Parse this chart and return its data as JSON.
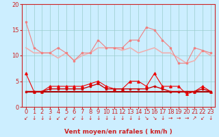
{
  "title": "",
  "xlabel": "Vent moyen/en rafales ( km/h )",
  "ylabel": "",
  "background_color": "#cceeff",
  "grid_color": "#99cccc",
  "xlim": [
    -0.5,
    23.5
  ],
  "ylim": [
    0,
    20
  ],
  "yticks": [
    0,
    5,
    10,
    15,
    20
  ],
  "xticks": [
    0,
    1,
    2,
    3,
    4,
    5,
    6,
    7,
    8,
    9,
    10,
    11,
    12,
    13,
    14,
    15,
    16,
    17,
    18,
    19,
    20,
    21,
    22,
    23
  ],
  "series": [
    {
      "name": "rafales_markers",
      "x": [
        0,
        1,
        2,
        3,
        4,
        5,
        6,
        7,
        8,
        9,
        10,
        11,
        12,
        13,
        14,
        15,
        16,
        17,
        18,
        19,
        20,
        21,
        22,
        23
      ],
      "y": [
        16.5,
        11.5,
        10.5,
        10.5,
        11.5,
        10.5,
        9.0,
        10.5,
        10.5,
        13.0,
        11.5,
        11.5,
        11.5,
        13.0,
        13.0,
        15.5,
        15.0,
        13.0,
        11.5,
        8.5,
        8.5,
        11.5,
        11.0,
        10.5
      ],
      "color": "#f08080",
      "linewidth": 0.8,
      "marker": "s",
      "markersize": 2.0,
      "zorder": 3
    },
    {
      "name": "rafales_smooth",
      "x": [
        0,
        1,
        2,
        3,
        4,
        5,
        6,
        7,
        8,
        9,
        10,
        11,
        12,
        13,
        14,
        15,
        16,
        17,
        18,
        19,
        20,
        21,
        22,
        23
      ],
      "y": [
        11.5,
        10.5,
        10.5,
        10.5,
        9.5,
        10.5,
        9.0,
        10.0,
        10.5,
        11.5,
        11.5,
        11.5,
        11.0,
        11.5,
        10.5,
        11.0,
        11.5,
        10.5,
        10.5,
        9.5,
        8.5,
        9.0,
        11.0,
        10.0
      ],
      "color": "#f0b0b0",
      "linewidth": 1.2,
      "marker": null,
      "markersize": 0,
      "zorder": 2
    },
    {
      "name": "moyen_markers",
      "x": [
        0,
        1,
        2,
        3,
        4,
        5,
        6,
        7,
        8,
        9,
        10,
        11,
        12,
        13,
        14,
        15,
        16,
        17,
        18,
        19,
        20,
        21,
        22,
        23
      ],
      "y": [
        6.5,
        3.0,
        3.0,
        4.0,
        4.0,
        4.0,
        4.0,
        4.0,
        4.5,
        5.0,
        4.0,
        3.5,
        3.5,
        5.0,
        5.0,
        4.0,
        6.5,
        4.0,
        4.0,
        4.0,
        2.5,
        3.0,
        4.0,
        3.0
      ],
      "color": "#ee0000",
      "linewidth": 0.8,
      "marker": "^",
      "markersize": 2.5,
      "zorder": 4
    },
    {
      "name": "moyen_smooth",
      "x": [
        0,
        1,
        2,
        3,
        4,
        5,
        6,
        7,
        8,
        9,
        10,
        11,
        12,
        13,
        14,
        15,
        16,
        17,
        18,
        19,
        20,
        21,
        22,
        23
      ],
      "y": [
        3.0,
        3.0,
        3.0,
        3.5,
        3.5,
        3.5,
        3.5,
        3.5,
        4.0,
        4.5,
        3.5,
        3.5,
        3.5,
        3.5,
        3.5,
        3.5,
        4.0,
        3.5,
        3.0,
        3.0,
        3.0,
        3.0,
        3.5,
        3.0
      ],
      "color": "#cc0000",
      "linewidth": 1.0,
      "marker": "s",
      "markersize": 2.0,
      "zorder": 4
    },
    {
      "name": "moyen_flat",
      "x": [
        0,
        1,
        2,
        3,
        4,
        5,
        6,
        7,
        8,
        9,
        10,
        11,
        12,
        13,
        14,
        15,
        16,
        17,
        18,
        19,
        20,
        21,
        22,
        23
      ],
      "y": [
        3.0,
        3.0,
        3.0,
        3.0,
        3.0,
        3.0,
        3.0,
        3.0,
        3.0,
        3.0,
        3.0,
        3.0,
        3.0,
        3.0,
        3.0,
        3.0,
        3.0,
        3.0,
        3.0,
        3.0,
        3.0,
        3.0,
        3.0,
        3.0
      ],
      "color": "#aa0000",
      "linewidth": 1.5,
      "marker": null,
      "markersize": 0,
      "zorder": 2
    }
  ],
  "wind_arrows": [
    {
      "x": 0,
      "symbol": "↙"
    },
    {
      "x": 1,
      "symbol": "↓"
    },
    {
      "x": 2,
      "symbol": "↓"
    },
    {
      "x": 3,
      "symbol": "↓"
    },
    {
      "x": 4,
      "symbol": "↙"
    },
    {
      "x": 5,
      "symbol": "↙"
    },
    {
      "x": 6,
      "symbol": "↙"
    },
    {
      "x": 7,
      "symbol": "↓"
    },
    {
      "x": 8,
      "symbol": "↓"
    },
    {
      "x": 9,
      "symbol": "↓"
    },
    {
      "x": 10,
      "symbol": "↓"
    },
    {
      "x": 11,
      "symbol": "↓"
    },
    {
      "x": 12,
      "symbol": "↓"
    },
    {
      "x": 13,
      "symbol": "↓"
    },
    {
      "x": 14,
      "symbol": "↓"
    },
    {
      "x": 15,
      "symbol": "↘"
    },
    {
      "x": 16,
      "symbol": "↘"
    },
    {
      "x": 17,
      "symbol": "↓"
    },
    {
      "x": 18,
      "symbol": "→"
    },
    {
      "x": 19,
      "symbol": "→"
    },
    {
      "x": 20,
      "symbol": "→"
    },
    {
      "x": 21,
      "symbol": "↗"
    },
    {
      "x": 22,
      "symbol": "↙"
    },
    {
      "x": 23,
      "symbol": "↓"
    }
  ],
  "arrow_color": "#cc2222",
  "axis_color": "#cc2222",
  "tick_color": "#cc2222",
  "label_color": "#cc2222",
  "label_fontsize": 6.5,
  "tick_fontsize": 6.0
}
